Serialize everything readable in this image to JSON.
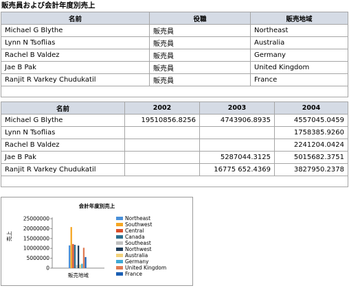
{
  "title": "販売員および会計年度別売上",
  "table1": {
    "headers": [
      "名前",
      "役職",
      "販売地域"
    ],
    "rows": [
      [
        "Michael G Blythe",
        "販売員",
        "Northeast"
      ],
      [
        "Lynn N Tsoflias",
        "販売員",
        "Australia"
      ],
      [
        "Rachel B Valdez",
        "販売員",
        "Germany"
      ],
      [
        "Jae B Pak",
        "販売員",
        "United Kingdom"
      ],
      [
        "Ranjit R Varkey Chudukatil",
        "販売員",
        "France"
      ]
    ]
  },
  "table2": {
    "headers": [
      "名前",
      "2002",
      "2003",
      "2004"
    ],
    "rows": [
      [
        "Michael G Blythe",
        "19510856.8256",
        "4743906.8935",
        "4557045.0459"
      ],
      [
        "Lynn N Tsoflias",
        "",
        "",
        "1758385.9260"
      ],
      [
        "Rachel B Valdez",
        "",
        "",
        "2241204.0424"
      ],
      [
        "Jae B Pak",
        "",
        "5287044.3125",
        "5015682.3751"
      ],
      [
        "Ranjit R Varkey Chudukatil",
        "",
        "16775 652.4369",
        "3827950.2378"
      ]
    ]
  },
  "chart_data": {
    "type": "bar",
    "title": "会計年度別売上",
    "xlabel": "販売地域",
    "ylabel": "売上",
    "ylim": [
      0,
      25000000
    ],
    "yticks": [
      "25000000",
      "20000000",
      "15000000",
      "10000000",
      "5000000",
      "0"
    ],
    "categories": [
      "販売地域"
    ],
    "series": [
      {
        "name": "Northeast",
        "values": [
          11500000
        ],
        "color": "#4a90d9"
      },
      {
        "name": "Southwest",
        "values": [
          20800000
        ],
        "color": "#f5a623"
      },
      {
        "name": "Central",
        "values": [
          12200000
        ],
        "color": "#d94f2b"
      },
      {
        "name": "Canada",
        "values": [
          11800000
        ],
        "color": "#2a6f8f"
      },
      {
        "name": "Southeast",
        "values": [
          1600000
        ],
        "color": "#c0c0c0"
      },
      {
        "name": "Northwest",
        "values": [
          11400000
        ],
        "color": "#1f3c5a"
      },
      {
        "name": "Australia",
        "values": [
          1800000
        ],
        "color": "#f2d27a"
      },
      {
        "name": "Germany",
        "values": [
          2200000
        ],
        "color": "#3fa9d6"
      },
      {
        "name": "United Kingdom",
        "values": [
          10300000
        ],
        "color": "#e07b54"
      },
      {
        "name": "France",
        "values": [
          5600000
        ],
        "color": "#1a5fb4"
      }
    ]
  }
}
